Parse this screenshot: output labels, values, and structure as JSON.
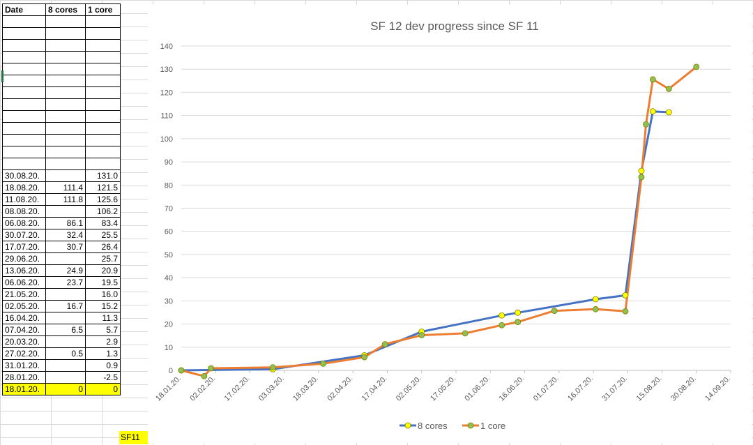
{
  "sheet": {
    "headers": [
      "Date",
      "8 cores",
      "1 core"
    ],
    "rows": [
      [
        "",
        "",
        ""
      ],
      [
        "",
        "",
        ""
      ],
      [
        "",
        "",
        ""
      ],
      [
        "",
        "",
        ""
      ],
      [
        "",
        "",
        ""
      ],
      [
        "",
        "",
        ""
      ],
      [
        "",
        "",
        ""
      ],
      [
        "",
        "",
        ""
      ],
      [
        "",
        "",
        ""
      ],
      [
        "",
        "",
        ""
      ],
      [
        "",
        "",
        ""
      ],
      [
        "",
        "",
        ""
      ],
      [
        "",
        "",
        ""
      ],
      [
        "30.08.20.",
        "",
        "131.0"
      ],
      [
        "18.08.20.",
        "111.4",
        "121.5"
      ],
      [
        "11.08.20.",
        "111.8",
        "125.6"
      ],
      [
        "08.08.20.",
        "",
        "106.2"
      ],
      [
        "06.08.20.",
        "86.1",
        "83.4"
      ],
      [
        "30.07.20.",
        "32.4",
        "25.5"
      ],
      [
        "17.07.20.",
        "30.7",
        "26.4"
      ],
      [
        "29.06.20.",
        "",
        "25.7"
      ],
      [
        "13.06.20.",
        "24.9",
        "20.9"
      ],
      [
        "06.06.20.",
        "23.7",
        "19.5"
      ],
      [
        "21.05.20.",
        "",
        "16.0"
      ],
      [
        "02.05.20.",
        "16.7",
        "15.2"
      ],
      [
        "16.04.20.",
        "",
        "11.3"
      ],
      [
        "07.04.20.",
        "6.5",
        "5.7"
      ],
      [
        "20.03.20.",
        "",
        "2.9"
      ],
      [
        "27.02.20.",
        "0.5",
        "1.3"
      ],
      [
        "31.01.20.",
        "",
        "0.9"
      ],
      [
        "28.01.20.",
        "",
        "-2.5"
      ],
      [
        "18.01.20.",
        "0",
        "0"
      ]
    ],
    "highlight_row_index": 31,
    "side_label": "SF11",
    "highlight_color": "#ffff00"
  },
  "chart_data": {
    "type": "line",
    "title": "SF 12 dev progress since SF 11",
    "xlabel": "",
    "ylabel": "",
    "ylim": [
      0,
      140
    ],
    "yticks": [
      0,
      10,
      20,
      30,
      40,
      50,
      60,
      70,
      80,
      90,
      100,
      110,
      120,
      130,
      140
    ],
    "xlim": [
      "18.01.20.",
      "14.09.20."
    ],
    "xtick_labels": [
      "18.01.20.",
      "02.02.20.",
      "17.02.20.",
      "03.03.20.",
      "18.03.20.",
      "02.04.20.",
      "17.04.20.",
      "02.05.20.",
      "17.05.20.",
      "01.06.20.",
      "16.06.20.",
      "01.07.20.",
      "16.07.20.",
      "31.07.20.",
      "15.08.20.",
      "30.08.20.",
      "14.09.20."
    ],
    "grid": true,
    "legend_position": "bottom",
    "series": [
      {
        "name": "8 cores",
        "line_color": "#4472c4",
        "marker_color": "#ffff00",
        "points": [
          {
            "x": "18.01.20.",
            "y": 0
          },
          {
            "x": "27.02.20.",
            "y": 0.5
          },
          {
            "x": "07.04.20.",
            "y": 6.5
          },
          {
            "x": "02.05.20.",
            "y": 16.7
          },
          {
            "x": "06.06.20.",
            "y": 23.7
          },
          {
            "x": "13.06.20.",
            "y": 24.9
          },
          {
            "x": "17.07.20.",
            "y": 30.7
          },
          {
            "x": "30.07.20.",
            "y": 32.4
          },
          {
            "x": "06.08.20.",
            "y": 86.1
          },
          {
            "x": "11.08.20.",
            "y": 111.8
          },
          {
            "x": "18.08.20.",
            "y": 111.4
          }
        ]
      },
      {
        "name": "1 core",
        "line_color": "#ed7d31",
        "marker_color": "#92c050",
        "points": [
          {
            "x": "18.01.20.",
            "y": 0
          },
          {
            "x": "28.01.20.",
            "y": -2.5
          },
          {
            "x": "31.01.20.",
            "y": 0.9
          },
          {
            "x": "27.02.20.",
            "y": 1.3
          },
          {
            "x": "20.03.20.",
            "y": 2.9
          },
          {
            "x": "07.04.20.",
            "y": 5.7
          },
          {
            "x": "16.04.20.",
            "y": 11.3
          },
          {
            "x": "02.05.20.",
            "y": 15.2
          },
          {
            "x": "21.05.20.",
            "y": 16.0
          },
          {
            "x": "06.06.20.",
            "y": 19.5
          },
          {
            "x": "13.06.20.",
            "y": 20.9
          },
          {
            "x": "29.06.20.",
            "y": 25.7
          },
          {
            "x": "17.07.20.",
            "y": 26.4
          },
          {
            "x": "30.07.20.",
            "y": 25.5
          },
          {
            "x": "06.08.20.",
            "y": 83.4
          },
          {
            "x": "08.08.20.",
            "y": 106.2
          },
          {
            "x": "11.08.20.",
            "y": 125.6
          },
          {
            "x": "18.08.20.",
            "y": 121.5
          },
          {
            "x": "30.08.20.",
            "y": 131.0
          }
        ]
      }
    ]
  }
}
